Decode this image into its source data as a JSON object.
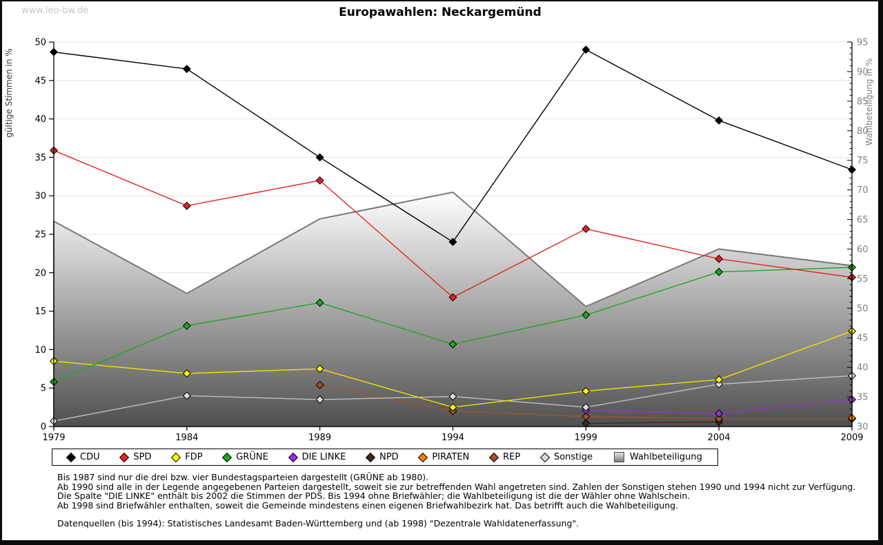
{
  "window": {
    "watermark": "www.leo-bw.de"
  },
  "chart_data": {
    "type": "line",
    "title": "Europawahlen: Neckargemünd",
    "categories": [
      "1979",
      "1984",
      "1989",
      "1994",
      "1999",
      "2004",
      "2009"
    ],
    "grid": true,
    "legend_position": "bottom",
    "y_left": {
      "label": "gültige Stimmen in %",
      "min": 0,
      "max": 50,
      "step": 5
    },
    "y_right": {
      "label": "Wahlbeteiligung in %",
      "min": 30,
      "max": 95,
      "step": 5,
      "minor_step": 1
    },
    "series": [
      {
        "name": "CDU",
        "type": "line",
        "axis": "left",
        "z": 10,
        "color": "#000000",
        "marker_fill": "#000000",
        "values": [
          48.7,
          46.5,
          35.0,
          24.0,
          49.0,
          39.8,
          33.4
        ]
      },
      {
        "name": "SPD",
        "type": "line",
        "axis": "left",
        "z": 9,
        "color": "#e32222",
        "marker_fill": "#e32222",
        "values": [
          35.9,
          28.7,
          32.0,
          16.8,
          25.7,
          21.8,
          19.4
        ]
      },
      {
        "name": "FDP",
        "type": "line",
        "axis": "left",
        "z": 7,
        "color": "#f2e300",
        "marker_fill": "#ffff00",
        "values": [
          8.5,
          6.9,
          7.5,
          2.5,
          4.6,
          6.1,
          12.4
        ]
      },
      {
        "name": "GRÜNE",
        "type": "line",
        "axis": "left",
        "z": 8,
        "color": "#1ca81c",
        "marker_fill": "#1ca81c",
        "values": [
          5.8,
          13.1,
          16.1,
          10.7,
          14.5,
          20.1,
          20.7
        ]
      },
      {
        "name": "DIE LINKE",
        "type": "line",
        "axis": "left",
        "z": 5,
        "color": "#9d2fd6",
        "marker_fill": "#9d2fd6",
        "values": [
          null,
          null,
          null,
          null,
          2.1,
          1.7,
          3.5
        ]
      },
      {
        "name": "NPD",
        "type": "line",
        "axis": "left",
        "z": 2,
        "color": "#402a10",
        "marker_fill": "#402a10",
        "values": [
          null,
          null,
          null,
          null,
          0.4,
          0.6,
          null
        ]
      },
      {
        "name": "PIRATEN",
        "type": "line",
        "axis": "left",
        "z": 4,
        "color": "#ee8000",
        "marker_fill": "#ee8000",
        "values": [
          null,
          null,
          null,
          null,
          null,
          null,
          1.1
        ]
      },
      {
        "name": "REP",
        "type": "line",
        "axis": "left",
        "z": 3,
        "color": "#a0522d",
        "marker_fill": "#a0522d",
        "values": [
          null,
          null,
          5.4,
          2.0,
          1.3,
          1.0,
          1.0
        ]
      },
      {
        "name": "Sonstige",
        "type": "line",
        "axis": "left",
        "z": 6,
        "color": "#c0c0c0",
        "marker_fill": "#dcdcdc",
        "values": [
          0.7,
          4.0,
          3.5,
          3.9,
          2.5,
          5.5,
          6.6
        ]
      },
      {
        "name": "Wahlbeteiligung",
        "type": "area",
        "axis": "right",
        "z": 1,
        "color": "#787878",
        "fill_top": "#ffffff",
        "fill_bottom": "#4f4f4f",
        "values": [
          64.7,
          52.5,
          65.1,
          69.6,
          50.3,
          60.0,
          57.2
        ]
      }
    ]
  },
  "footer": {
    "notes": [
      "Bis 1987 sind nur die drei bzw. vier Bundestagsparteien dargestellt (GRÜNE ab 1980).",
      "Ab 1990 sind alle in der Legende angegebenen Parteien dargestellt, soweit sie zur betreffenden Wahl angetreten sind. Zahlen der Sonstigen stehen 1990 und 1994 nicht zur Verfügung.",
      "Die Spalte \"DIE LINKE\" enthält bis 2002 die Stimmen der PDS. Bis 1994 ohne Briefwähler; die Wahlbeteiligung ist die der Wähler ohne Wahlschein.",
      "Ab 1998 sind Briefwähler enthalten, soweit die Gemeinde mindestens einen eigenen Briefwahlbezirk hat. Das betrifft auch die Wahlbeteiligung."
    ],
    "source": "Datenquellen (bis 1994): Statistisches Landesamt Baden-Württemberg und (ab 1998) \"Dezentrale Wahldatenerfassung\"."
  }
}
